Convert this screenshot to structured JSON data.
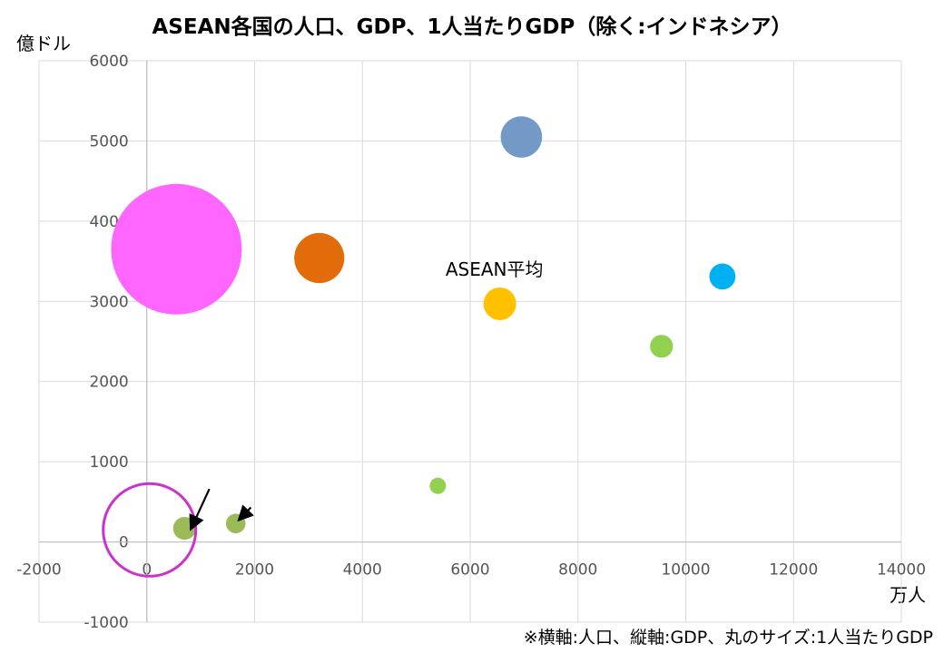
{
  "chart_data": {
    "type": "scatter",
    "title": "ASEAN各国の人口、GDP、1人当たりGDP（除く:インドネシア）",
    "xlabel": "万人",
    "ylabel": "億ドル",
    "xlim": [
      -2000,
      14000
    ],
    "ylim": [
      -1000,
      6000
    ],
    "x_ticks": [
      -2000,
      0,
      2000,
      4000,
      6000,
      8000,
      10000,
      12000,
      14000
    ],
    "y_ticks": [
      -1000,
      0,
      1000,
      2000,
      3000,
      4000,
      5000,
      6000
    ],
    "grid": true,
    "footnote": "※横軸:人口、縦軸:GDP、丸のサイズ:1人当たりGDP",
    "points": [
      {
        "x": 550,
        "y": 3650,
        "size": 6.0,
        "color": "#ff66ff"
      },
      {
        "x": 3200,
        "y": 3540,
        "size": 2.3,
        "color": "#e36c0a"
      },
      {
        "x": 6950,
        "y": 5050,
        "size": 1.9,
        "color": "#7399c6"
      },
      {
        "x": 6550,
        "y": 2970,
        "size": 1.5,
        "color": "#ffc000",
        "label": "ASEAN平均"
      },
      {
        "x": 10680,
        "y": 3310,
        "size": 1.2,
        "color": "#00b0f0"
      },
      {
        "x": 9550,
        "y": 2440,
        "size": 1.05,
        "color": "#92d050"
      },
      {
        "x": 5400,
        "y": 700,
        "size": 0.75,
        "color": "#92d050"
      },
      {
        "x": 700,
        "y": 170,
        "size": 1.05,
        "color": "#9bbb59"
      },
      {
        "x": 1650,
        "y": 230,
        "size": 0.9,
        "color": "#9bbb59"
      }
    ],
    "highlight_circle": {
      "x": 50,
      "y": 150,
      "color": "#cc33cc"
    },
    "arrows": [
      {
        "from": [
          1160,
          660
        ],
        "to": [
          830,
          180
        ]
      },
      {
        "from": [
          1930,
          430
        ],
        "to": [
          1730,
          290
        ]
      }
    ]
  }
}
